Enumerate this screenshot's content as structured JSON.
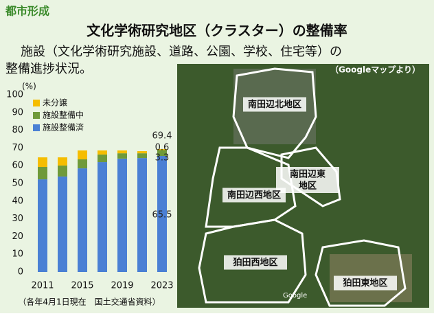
{
  "header": {
    "category": "都市形成",
    "title": "文化学術研究地区（クラスター）の整備率",
    "text_lines": [
      "施設（文化学術研究施設、道路、公園、学校、住宅等）の",
      "整備進捗状況。"
    ]
  },
  "chart_data": {
    "type": "stacked_bar",
    "y_unit": "(%)",
    "categories": [
      "2011",
      null,
      "2015",
      null,
      "2019",
      null,
      "2023"
    ],
    "series": [
      {
        "name": "施設整備済",
        "color": "#4a80d4",
        "values": [
          52.3,
          53.9,
          58.5,
          62.0,
          64.0,
          64.3,
          65.5
        ]
      },
      {
        "name": "施設整備中",
        "color": "#6f9a3a",
        "values": [
          7.0,
          6.2,
          5.1,
          4.3,
          3.0,
          2.7,
          3.3
        ]
      },
      {
        "name": "未分譲",
        "color": "#f5bd00",
        "values": [
          5.4,
          4.6,
          5.0,
          2.3,
          1.6,
          1.2,
          0.6
        ]
      }
    ],
    "annotations": [
      "69.4"
    ],
    "ylim": [
      0,
      100
    ],
    "yticks": [
      0,
      10,
      20,
      30,
      40,
      50,
      60,
      70,
      80,
      90,
      100
    ],
    "note": "（各年4月1日現在　国土交通省資料）"
  },
  "map": {
    "credit": "（Googleマップより）",
    "logo": "Google",
    "labels": [
      [
        "南田辺北地区"
      ],
      [
        "南田辺東",
        "地区"
      ],
      [
        "南田辺西地区"
      ],
      [
        "狛田西地区"
      ],
      [
        "狛田東地区"
      ]
    ]
  }
}
